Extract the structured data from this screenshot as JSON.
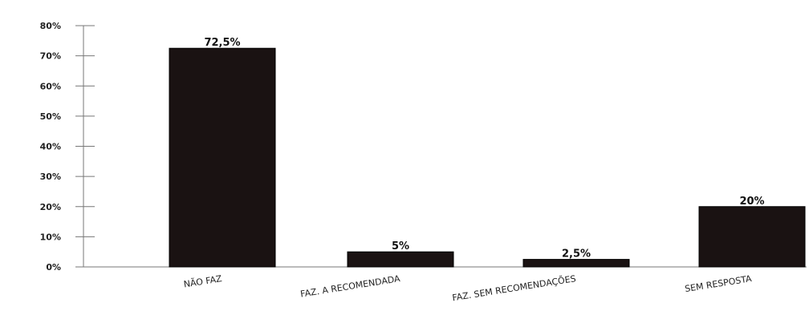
{
  "chart_data": {
    "type": "bar",
    "title": "",
    "xlabel": "",
    "ylabel": "",
    "categories": [
      "NÃO FAZ",
      "FAZ. A RECOMENDADA",
      "FAZ. SEM RECOMENDAÇÕES",
      "SEM RESPOSTA"
    ],
    "values": [
      72.5,
      5,
      2.5,
      20
    ],
    "data_labels": [
      "72,5%",
      "5%",
      "2,5%",
      "20%"
    ],
    "ylim": [
      0,
      80
    ],
    "yticks": [
      0,
      10,
      20,
      30,
      40,
      50,
      60,
      70,
      80
    ],
    "ytick_labels": [
      "0%",
      "10%",
      "20%",
      "30%",
      "40%",
      "50%",
      "60%",
      "70%",
      "80%"
    ],
    "grid": false,
    "bar_color": "#1a1212"
  }
}
